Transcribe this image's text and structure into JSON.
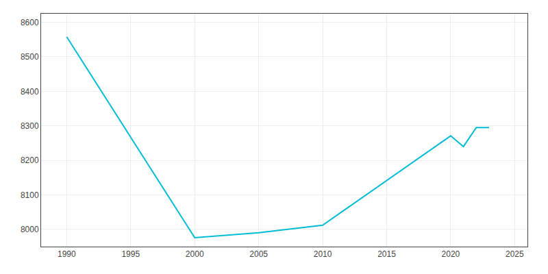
{
  "chart_data": {
    "type": "line",
    "x": [
      1990,
      2000,
      2005,
      2010,
      2020,
      2021,
      2022,
      2023
    ],
    "values": [
      8558,
      7976,
      7990,
      8012,
      8271,
      8240,
      8295,
      8295
    ],
    "color": "#00bcd4",
    "xlim": [
      1988,
      2026
    ],
    "ylim": [
      7950,
      8625
    ],
    "xticks": [
      1990,
      1995,
      2000,
      2005,
      2010,
      2015,
      2020,
      2025
    ],
    "yticks": [
      8000,
      8100,
      8200,
      8300,
      8400,
      8500,
      8600
    ],
    "grid": true
  }
}
